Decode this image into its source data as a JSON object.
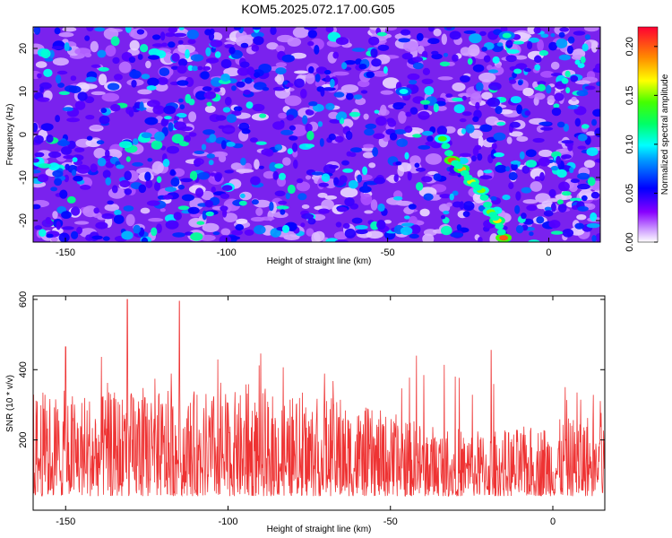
{
  "title": "KOM5.2025.072.17.00.G05",
  "chart_data": [
    {
      "type": "heatmap",
      "title": "KOM5.2025.072.17.00.G05",
      "xlabel": "Height of straight line (km)",
      "ylabel": "Frequency (Hz)",
      "xlim": [
        -160,
        16
      ],
      "ylim": [
        -25,
        25
      ],
      "x_ticks": [
        -150,
        -100,
        -50,
        0
      ],
      "y_ticks": [
        -20,
        -10,
        0,
        10,
        20
      ],
      "colorbar": {
        "label": "Normalized spectral amplitude",
        "range": [
          0,
          0.22
        ],
        "ticks": [
          "0.00",
          "0.05",
          "0.10",
          "0.15",
          "0.20"
        ],
        "colors": [
          "#ffffff",
          "#8800ff",
          "#0000ff",
          "#00ffff",
          "#00ff00",
          "#ffff00",
          "#ff8800",
          "#ff0000"
        ]
      },
      "background_level": 0.03,
      "ridge": {
        "description_points": [
          {
            "x": -33,
            "y": -1,
            "value": 0.14
          },
          {
            "x": -30,
            "y": -6,
            "value": 0.2
          },
          {
            "x": -27,
            "y": -8,
            "value": 0.18
          },
          {
            "x": -24,
            "y": -11,
            "value": 0.16
          },
          {
            "x": -21,
            "y": -13,
            "value": 0.15
          },
          {
            "x": -18,
            "y": -18,
            "value": 0.15
          },
          {
            "x": -16,
            "y": -20,
            "value": 0.17
          },
          {
            "x": -14,
            "y": -24,
            "value": 0.2
          },
          {
            "x": -45,
            "y": 10,
            "value": 0.1
          },
          {
            "x": -13,
            "y": 23,
            "value": 0.11
          }
        ]
      }
    },
    {
      "type": "line",
      "xlabel": "Height of straight line (km)",
      "ylabel": "SNR (10 * v/v)",
      "xlim": [
        -160,
        16
      ],
      "ylim": [
        0,
        610
      ],
      "x_ticks": [
        -150,
        -100,
        -50,
        0
      ],
      "y_ticks": [
        200,
        400,
        600
      ],
      "color": "#ee3333",
      "grid": false,
      "approx_baseline": 150,
      "approx_range": [
        10,
        600
      ],
      "notable_peaks": [
        {
          "x": -131,
          "y": 600
        },
        {
          "x": -115,
          "y": 595
        },
        {
          "x": -150,
          "y": 465
        },
        {
          "x": -19,
          "y": 455
        },
        {
          "x": -42,
          "y": 440
        }
      ]
    }
  ]
}
